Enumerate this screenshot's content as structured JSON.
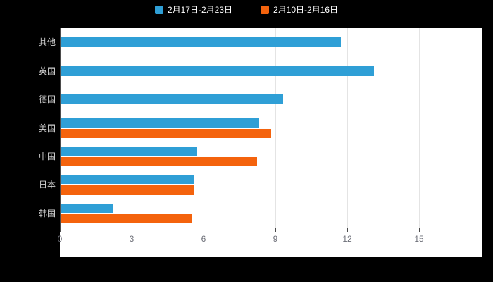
{
  "chart_data": {
    "type": "bar",
    "orientation": "horizontal",
    "title": "",
    "categories": [
      "其他",
      "英国",
      "德国",
      "美国",
      "中国",
      "日本",
      "韩国"
    ],
    "series": [
      {
        "name": "2月17日-2月23日",
        "color": "#2f9fd6",
        "values": [
          11.7,
          13.1,
          9.3,
          8.3,
          5.7,
          5.6,
          2.2
        ]
      },
      {
        "name": "2月10日-2月16日",
        "color": "#f4630d",
        "values": [
          null,
          null,
          null,
          8.8,
          8.2,
          5.6,
          5.5
        ]
      }
    ],
    "xlim": [
      0,
      15
    ],
    "xticks": [
      0,
      3,
      6,
      9,
      12,
      15
    ],
    "legend_position": "top",
    "grid": "vertical-only",
    "plot_background": "#ffffff",
    "page_background": "#000000"
  }
}
